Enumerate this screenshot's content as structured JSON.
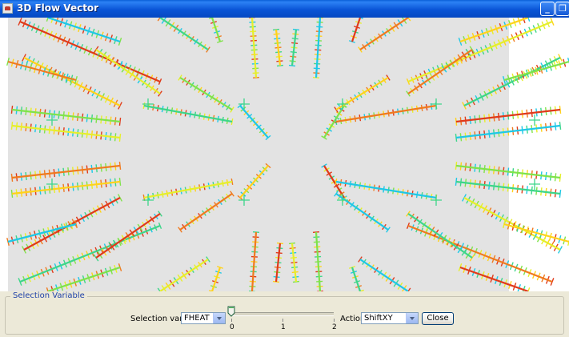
{
  "window": {
    "title": "3D Flow Vector",
    "icon": "java-cup-icon",
    "controls": [
      "minimize-icon",
      "maximize-icon",
      "close-icon"
    ]
  },
  "view": {
    "background_colors": {
      "gray_region": "#e3e3e3",
      "white_region": "#ffffff"
    },
    "palette": [
      "#1ec8e6",
      "#3dd68a",
      "#7fe34a",
      "#e6ef2a",
      "#ffd21a",
      "#f07a1e",
      "#e03a1a"
    ]
  },
  "panel": {
    "group_title": "Selection Variable",
    "selection_label": "Selection variable",
    "selection_value": "FHEAT",
    "slider": {
      "value": 0,
      "min": 0,
      "max": 2,
      "tick_labels": [
        "0",
        "1",
        "2"
      ]
    },
    "action_label": "Action",
    "action_value": "ShiftXY",
    "close_label": "Close"
  }
}
